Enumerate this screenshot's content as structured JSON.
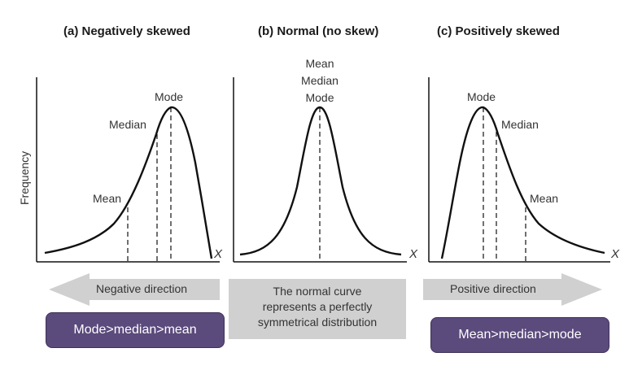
{
  "panels": [
    {
      "title": "(a) Negatively skewed",
      "x_axis_label": "X",
      "y_axis_label": "Frequency",
      "markers": {
        "mode": "Mode",
        "median": "Median",
        "mean": "Mean"
      }
    },
    {
      "title": "(b) Normal (no skew)",
      "x_axis_label": "X",
      "markers": {
        "mean": "Mean",
        "median": "Median",
        "mode": "Mode"
      }
    },
    {
      "title": "(c) Positively skewed",
      "x_axis_label": "X",
      "markers": {
        "mode": "Mode",
        "median": "Median",
        "mean": "Mean"
      }
    }
  ],
  "arrows": {
    "left_label": "Negative direction",
    "right_label": "Positive direction",
    "middle_lines": [
      "The normal curve",
      "represents a perfectly",
      "symmetrical distribution"
    ]
  },
  "relations": {
    "left": "Mode>median>mean",
    "right": "Mean>median>mode"
  },
  "colors": {
    "curve": "#111111",
    "arrow_fill": "#d0d0d0",
    "relation_box": "#5b4a7c",
    "relation_text": "#ffffff"
  }
}
